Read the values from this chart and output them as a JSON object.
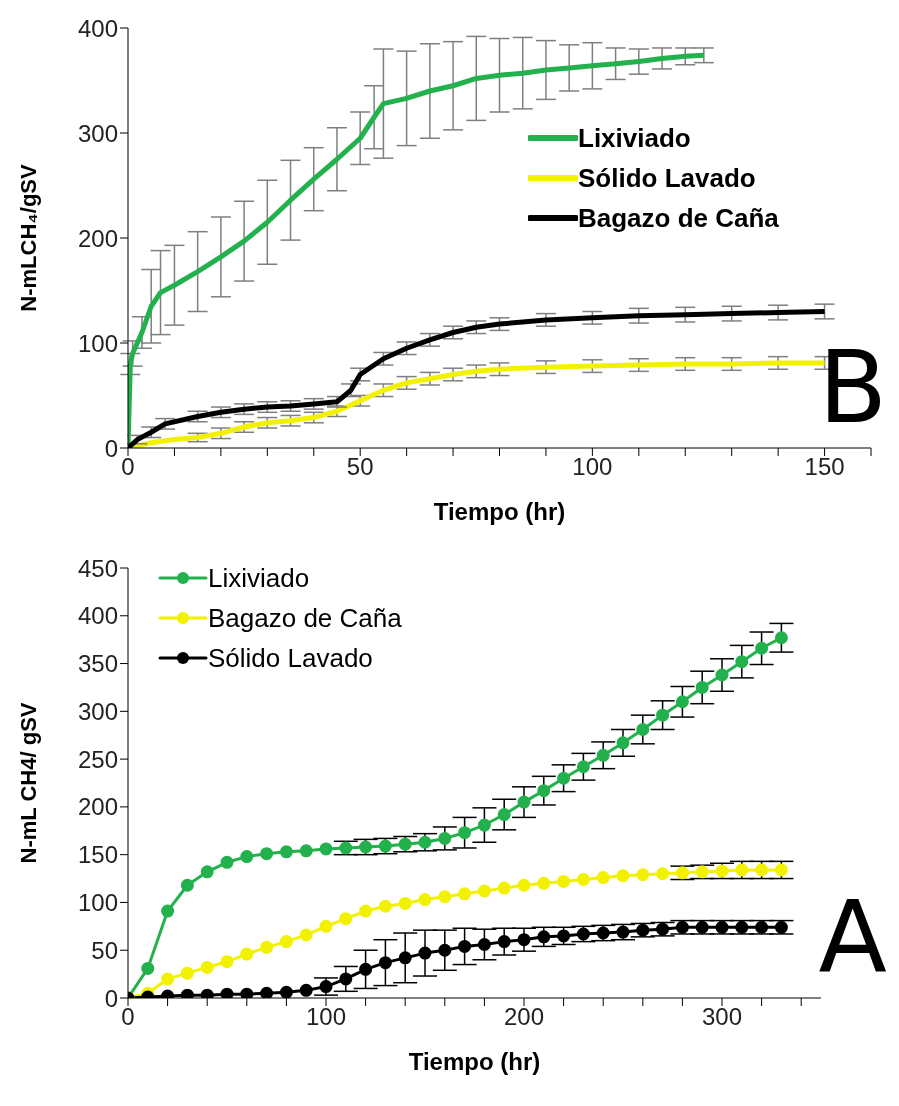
{
  "chart_data": [
    {
      "type": "line",
      "ylabel": "N-mLCH₄/gSV",
      "xlabel": "Tiempo (hr)",
      "xlim": [
        0,
        160
      ],
      "xticks": [
        0,
        {
          "value": 10,
          "label": null
        },
        {
          "value": 20,
          "label": null
        },
        {
          "value": 30,
          "label": null
        },
        {
          "value": 40,
          "label": null
        },
        50,
        {
          "value": 60,
          "label": null
        },
        {
          "value": 70,
          "label": null
        },
        {
          "value": 80,
          "label": null
        },
        {
          "value": 90,
          "label": null
        },
        100,
        {
          "value": 110,
          "label": null
        },
        {
          "value": 120,
          "label": null
        },
        {
          "value": 130,
          "label": null
        },
        {
          "value": 140,
          "label": null
        },
        150,
        {
          "value": 160,
          "label": null
        }
      ],
      "ylim": [
        0,
        400
      ],
      "yticks": [
        0,
        100,
        200,
        300,
        400
      ],
      "legend": "top right",
      "marker": "none",
      "line_style": "solid",
      "annotations": [
        "B"
      ],
      "series": [
        {
          "name": "Lixiviado",
          "color": "#22b14c",
          "x": [
            0,
            0.5,
            1,
            3,
            5,
            7,
            10,
            15,
            20,
            25,
            30,
            35,
            40,
            45,
            50,
            53,
            55,
            60,
            65,
            70,
            75,
            80,
            85,
            90,
            95,
            100,
            105,
            110,
            115,
            120,
            124
          ],
          "values": [
            0,
            80,
            90,
            110,
            135,
            148,
            155,
            168,
            182,
            197,
            215,
            236,
            256,
            275,
            295,
            315,
            328,
            333,
            340,
            345,
            352,
            355,
            357,
            360,
            362,
            364,
            366,
            368,
            371,
            373,
            374
          ],
          "errors": [
            0,
            10,
            12,
            15,
            35,
            40,
            38,
            38,
            38,
            38,
            40,
            38,
            30,
            30,
            25,
            30,
            52,
            45,
            45,
            42,
            40,
            35,
            34,
            28,
            22,
            22,
            15,
            12,
            10,
            8,
            7
          ]
        },
        {
          "name": "Sólido Lavado",
          "color": "#f2f200",
          "x": [
            0,
            5,
            10,
            15,
            20,
            25,
            30,
            35,
            40,
            45,
            50,
            55,
            60,
            65,
            70,
            75,
            80,
            90,
            100,
            110,
            120,
            130,
            140,
            150
          ],
          "values": [
            0,
            5,
            8,
            10,
            14,
            20,
            24,
            26,
            29,
            35,
            45,
            55,
            62,
            66,
            70,
            73,
            75,
            77,
            78,
            79,
            80,
            80,
            81,
            81
          ],
          "errors": [
            null,
            null,
            null,
            4,
            5,
            5,
            5,
            5,
            5,
            5,
            5,
            6,
            6,
            6,
            6,
            6,
            6,
            6,
            6,
            6,
            6,
            6,
            6,
            6
          ]
        },
        {
          "name": "Bagazo de Caña",
          "color": "#000000",
          "x": [
            0,
            2,
            5,
            8,
            15,
            20,
            25,
            30,
            35,
            40,
            45,
            48,
            50,
            55,
            60,
            65,
            70,
            75,
            80,
            90,
            100,
            110,
            120,
            130,
            140,
            150
          ],
          "values": [
            0,
            8,
            15,
            23,
            30,
            34,
            37,
            39,
            40,
            42,
            44,
            55,
            70,
            85,
            95,
            103,
            110,
            115,
            118,
            122,
            124,
            126,
            127,
            128,
            129,
            130
          ],
          "errors": [
            0,
            4,
            5,
            5,
            5,
            5,
            5,
            5,
            5,
            5,
            5,
            6,
            6,
            6,
            6,
            6,
            6,
            6,
            6,
            6,
            6,
            7,
            7,
            7,
            7,
            7
          ]
        }
      ]
    },
    {
      "type": "line",
      "ylabel": "N-mL CH4/ gSV",
      "xlabel": "Tiempo (hr)",
      "xlim": [
        0,
        350
      ],
      "xticks": [
        0,
        {
          "value": 20,
          "label": null
        },
        {
          "value": 40,
          "label": null
        },
        {
          "value": 60,
          "label": null
        },
        {
          "value": 80,
          "label": null
        },
        100,
        {
          "value": 120,
          "label": null
        },
        {
          "value": 140,
          "label": null
        },
        {
          "value": 160,
          "label": null
        },
        {
          "value": 180,
          "label": null
        },
        200,
        {
          "value": 220,
          "label": null
        },
        {
          "value": 240,
          "label": null
        },
        {
          "value": 260,
          "label": null
        },
        {
          "value": 280,
          "label": null
        },
        300,
        {
          "value": 320,
          "label": null
        },
        {
          "value": 340,
          "label": null
        }
      ],
      "ylim": [
        0,
        450
      ],
      "yticks": [
        0,
        50,
        100,
        150,
        200,
        250,
        300,
        350,
        400,
        450
      ],
      "legend": "top left",
      "marker": "circle",
      "line_style": "solid",
      "annotations": [
        "A"
      ],
      "x": [
        0,
        10,
        20,
        30,
        40,
        50,
        60,
        70,
        80,
        90,
        100,
        110,
        120,
        130,
        140,
        150,
        160,
        170,
        180,
        190,
        200,
        210,
        220,
        230,
        240,
        250,
        260,
        270,
        280,
        290,
        300,
        310,
        320,
        330
      ],
      "series": [
        {
          "name": "Lixiviado",
          "color": "#22b14c",
          "values": [
            0,
            31,
            91,
            118,
            132,
            142,
            148,
            151,
            153,
            154,
            156,
            157,
            158,
            159,
            161,
            163,
            167,
            173,
            181,
            192,
            205,
            217,
            230,
            242,
            254,
            267,
            281,
            296,
            310,
            325,
            338,
            352,
            366,
            377
          ],
          "errors": [
            null,
            null,
            null,
            null,
            null,
            null,
            null,
            null,
            null,
            null,
            null,
            7,
            8,
            8,
            8,
            9,
            12,
            16,
            18,
            16,
            16,
            15,
            14,
            14,
            14,
            14,
            15,
            15,
            16,
            17,
            17,
            17,
            17,
            15
          ]
        },
        {
          "name": "Bagazo de Caña",
          "color": "#f2f200",
          "values": [
            0,
            5,
            20,
            26,
            32,
            38,
            46,
            53,
            59,
            66,
            75,
            83,
            91,
            96,
            99,
            103,
            106,
            109,
            112,
            115,
            118,
            120,
            122,
            124,
            126,
            128,
            129,
            130,
            131,
            132,
            133,
            134,
            134,
            134
          ],
          "errors": [
            null,
            null,
            null,
            null,
            null,
            null,
            null,
            null,
            null,
            null,
            null,
            null,
            null,
            null,
            null,
            null,
            null,
            null,
            null,
            null,
            null,
            null,
            null,
            null,
            null,
            null,
            null,
            null,
            7,
            7,
            8,
            9,
            9,
            9
          ]
        },
        {
          "name": "Sólido Lavado",
          "color": "#000000",
          "values": [
            0,
            1,
            2,
            3,
            3,
            4,
            4,
            5,
            6,
            8,
            12,
            20,
            30,
            37,
            42,
            47,
            50,
            54,
            56,
            59,
            61,
            64,
            65,
            67,
            68,
            69,
            71,
            72,
            74,
            74,
            74,
            74,
            74,
            74
          ],
          "errors": [
            null,
            null,
            null,
            null,
            null,
            null,
            null,
            null,
            null,
            null,
            9,
            13,
            20,
            24,
            26,
            24,
            21,
            19,
            16,
            14,
            12,
            10,
            9,
            8,
            8,
            8,
            7,
            7,
            7,
            7,
            7,
            7,
            7,
            7
          ]
        }
      ]
    }
  ]
}
